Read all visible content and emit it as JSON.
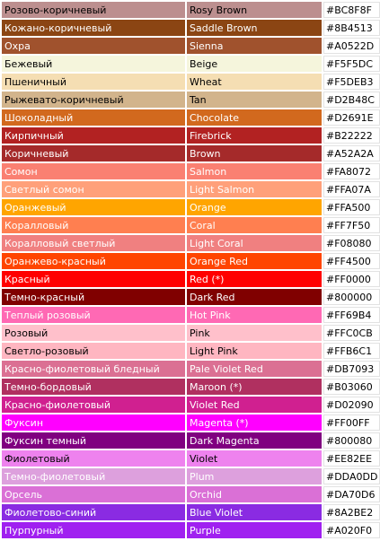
{
  "rows": [
    {
      "ru": "Розово-коричневый",
      "en": "Rosy Brown",
      "hex": "#BC8F8F",
      "text": "#000000"
    },
    {
      "ru": "Кожано-коричневый",
      "en": "Saddle Brown",
      "hex": "#8B4513",
      "text": "#ffffff"
    },
    {
      "ru": "Охра",
      "en": "Sienna",
      "hex": "#A0522D",
      "text": "#ffffff"
    },
    {
      "ru": "Бежевый",
      "en": "Beige",
      "hex": "#F5F5DC",
      "text": "#000000"
    },
    {
      "ru": "Пшеничный",
      "en": "Wheat",
      "hex": "#F5DEB3",
      "text": "#000000"
    },
    {
      "ru": "Рыжевато-коричневый",
      "en": "Tan",
      "hex": "#D2B48C",
      "text": "#000000"
    },
    {
      "ru": "Шоколадный",
      "en": "Chocolate",
      "hex": "#D2691E",
      "text": "#ffffff"
    },
    {
      "ru": "Кирпичный",
      "en": "Firebrick",
      "hex": "#B22222",
      "text": "#ffffff"
    },
    {
      "ru": "Коричневый",
      "en": "Brown",
      "hex": "#A52A2A",
      "text": "#ffffff"
    },
    {
      "ru": "Сомон",
      "en": "Salmon",
      "hex": "#FA8072",
      "text": "#ffffff"
    },
    {
      "ru": "Светлый сомон",
      "en": "Light Salmon",
      "hex": "#FFA07A",
      "text": "#ffffff"
    },
    {
      "ru": "Оранжевый",
      "en": "Orange",
      "hex": "#FFA500",
      "text": "#ffffff"
    },
    {
      "ru": "Коралловый",
      "en": "Coral",
      "hex": "#FF7F50",
      "text": "#ffffff"
    },
    {
      "ru": "Коралловый светлый",
      "en": "Light Coral",
      "hex": "#F08080",
      "text": "#ffffff"
    },
    {
      "ru": "Оранжево-красный",
      "en": "Orange Red",
      "hex": "#FF4500",
      "text": "#ffffff"
    },
    {
      "ru": "Красный",
      "en": "Red (*)",
      "hex": "#FF0000",
      "text": "#ffffff"
    },
    {
      "ru": "Темно-красный",
      "en": "Dark Red",
      "hex": "#800000",
      "text": "#ffffff"
    },
    {
      "ru": "Теплый розовый",
      "en": "Hot Pink",
      "hex": "#FF69B4",
      "text": "#ffffff"
    },
    {
      "ru": "Розовый",
      "en": "Pink",
      "hex": "#FFC0CB",
      "text": "#000000"
    },
    {
      "ru": "Светло-розовый",
      "en": "Light Pink",
      "hex": "#FFB6C1",
      "text": "#000000"
    },
    {
      "ru": "Красно-фиолетовый бледный",
      "en": "Pale Violet Red",
      "hex": "#DB7093",
      "text": "#ffffff"
    },
    {
      "ru": "Темно-бордовый",
      "en": "Maroon (*)",
      "hex": "#B03060",
      "text": "#ffffff"
    },
    {
      "ru": "Красно-фиолетовый",
      "en": "Violet Red",
      "hex": "#D02090",
      "text": "#ffffff"
    },
    {
      "ru": "Фуксин",
      "en": "Magenta (*)",
      "hex": "#FF00FF",
      "text": "#ffffff"
    },
    {
      "ru": "Фуксин темный",
      "en": "Dark Magenta",
      "hex": "#800080",
      "text": "#ffffff"
    },
    {
      "ru": "Фиолетовый",
      "en": "Violet",
      "hex": "#EE82EE",
      "text": "#000000"
    },
    {
      "ru": "Темно-фиолетовый",
      "en": "Plum",
      "hex": "#DDA0DD",
      "text": "#ffffff"
    },
    {
      "ru": "Орсель",
      "en": "Orchid",
      "hex": "#DA70D6",
      "text": "#ffffff"
    },
    {
      "ru": "Фиолетово-синий",
      "en": "Blue Violet",
      "hex": "#8A2BE2",
      "text": "#ffffff"
    },
    {
      "ru": "Пурпурный",
      "en": "Purple",
      "hex": "#A020F0",
      "text": "#ffffff"
    }
  ]
}
